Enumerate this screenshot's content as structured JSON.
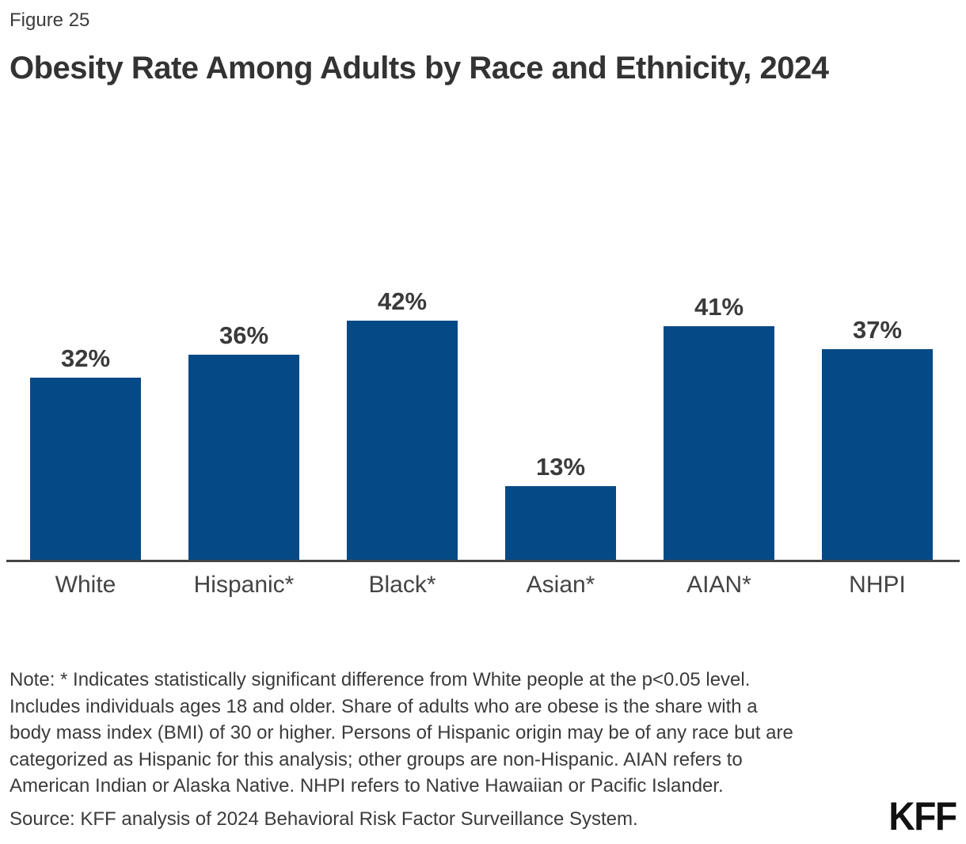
{
  "figure_label": "Figure 25",
  "title": "Obesity Rate Among Adults by Race and Ethnicity, 2024",
  "chart_data": {
    "type": "bar",
    "title": "Obesity Rate Among Adults by Race and Ethnicity, 2024",
    "categories": [
      "White",
      "Hispanic*",
      "Black*",
      "Asian*",
      "AIAN*",
      "NHPI"
    ],
    "values": [
      32,
      36,
      42,
      13,
      41,
      37
    ],
    "value_labels": [
      "32%",
      "36%",
      "42%",
      "13%",
      "41%",
      "37%"
    ],
    "unit": "percent of adults",
    "xlabel": "",
    "ylabel": "",
    "ylim": [
      0,
      52
    ],
    "grid": false,
    "legend": false,
    "y_axis_ticks_shown": false,
    "data_label_position": "above-bar",
    "bar_color": "#054a86"
  },
  "note_lines": [
    "Note: * Indicates statistically significant difference from White people at the p<0.05 level.",
    "Includes individuals ages 18 and older. Share of adults who are obese is the share with a",
    "body mass index (BMI) of 30 or higher. Persons of Hispanic origin may be of any race but are",
    "categorized as Hispanic for this analysis; other groups are non-Hispanic. AIAN refers to",
    "American Indian or Alaska Native. NHPI refers to Native Hawaiian or Pacific Islander."
  ],
  "source": "Source: KFF analysis of 2024 Behavioral Risk Factor Surveillance System.",
  "logo_text": "KFF",
  "colors": {
    "bar": "#054a86",
    "title_text": "#333333",
    "body_text": "#3b3b3b",
    "axis_line": "#454545",
    "logo": "#111111",
    "background": "#ffffff"
  }
}
